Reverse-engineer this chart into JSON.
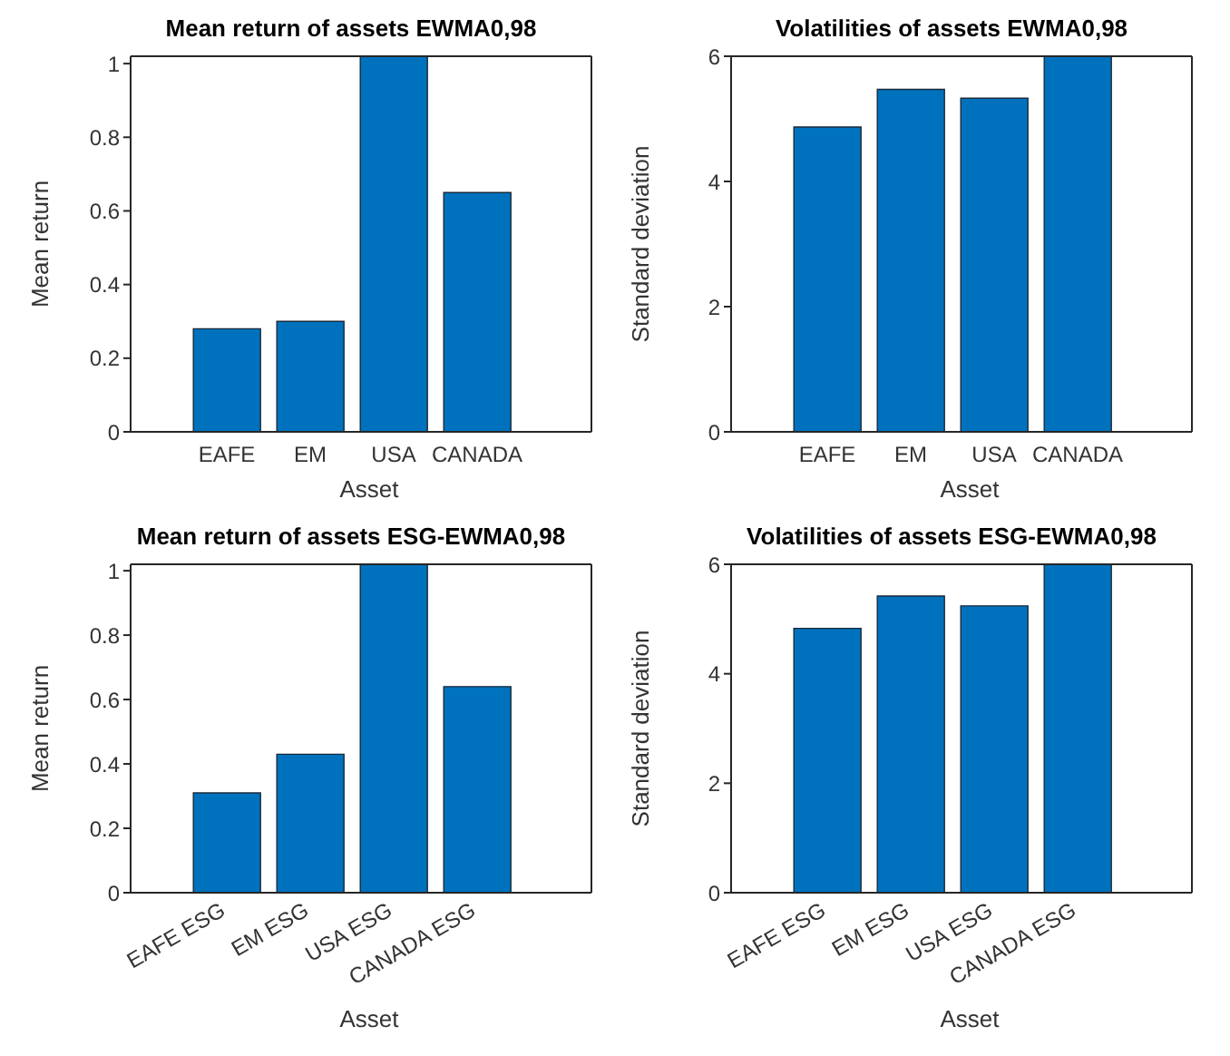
{
  "chart_data": [
    {
      "type": "bar",
      "title": "Mean return of assets EWMA0,98",
      "xlabel": "Asset",
      "ylabel": "Mean return",
      "categories": [
        "EAFE",
        "EM",
        "USA",
        "CANADA"
      ],
      "values": [
        0.28,
        0.3,
        1.02,
        0.65
      ],
      "color": "#0072bd",
      "ylim": [
        0,
        1.02
      ],
      "yticks": [
        0,
        0.2,
        0.4,
        0.6,
        0.8,
        1
      ]
    },
    {
      "type": "bar",
      "title": "Volatilities of assets EWMA0,98",
      "xlabel": "Asset",
      "ylabel": "Standard deviation",
      "categories": [
        "EAFE",
        "EM",
        "USA",
        "CANADA"
      ],
      "values": [
        4.87,
        5.47,
        5.33,
        6
      ],
      "color": "#0072bd",
      "ylim": [
        0,
        6
      ],
      "yticks": [
        0,
        2,
        4,
        6
      ]
    },
    {
      "type": "bar",
      "title": "Mean return of assets ESG-EWMA0,98",
      "xlabel": "Asset",
      "ylabel": "Mean return",
      "categories": [
        "EAFE ESG",
        "EM ESG",
        "USA ESG",
        "CANADA ESG"
      ],
      "values": [
        0.31,
        0.43,
        1.02,
        0.64
      ],
      "color": "#0072bd",
      "ylim": [
        0,
        1.02
      ],
      "yticks": [
        0,
        0.2,
        0.4,
        0.6,
        0.8,
        1
      ]
    },
    {
      "type": "bar",
      "title": "Volatilities of assets ESG-EWMA0,98",
      "xlabel": "Asset",
      "ylabel": "Standard deviation",
      "categories": [
        "EAFE ESG",
        "EM ESG",
        "USA ESG",
        "CANADA ESG"
      ],
      "values": [
        4.83,
        5.42,
        5.24,
        6
      ],
      "color": "#0072bd",
      "ylim": [
        0,
        6
      ],
      "yticks": [
        0,
        2,
        4,
        6
      ]
    }
  ]
}
